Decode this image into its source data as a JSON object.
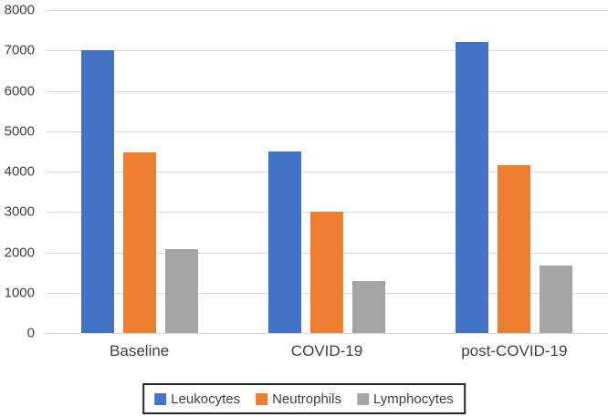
{
  "chart_data": {
    "type": "bar",
    "title": "",
    "categories": [
      "Baseline",
      "COVID-19",
      "post-COVID-19"
    ],
    "series": [
      {
        "name": "Leukocytes",
        "color": "#4472C4",
        "values": [
          7000,
          4500,
          7200
        ]
      },
      {
        "name": "Neutrophils",
        "color": "#ED7D31",
        "values": [
          4480,
          3000,
          4160
        ]
      },
      {
        "name": "Lymphocytes",
        "color": "#A5A5A5",
        "values": [
          2080,
          1280,
          1670
        ]
      }
    ],
    "xlabel": "",
    "ylabel": "",
    "ylim": [
      0,
      8000
    ],
    "ytick_step": 1000,
    "ytick_labels": [
      "0",
      "1000",
      "2000",
      "3000",
      "4000",
      "5000",
      "6000",
      "7000",
      "8000"
    ],
    "grid": true,
    "legend_position": "bottom-center",
    "colors": {
      "gridline": "#D9D9D9",
      "axis_text": "#404040",
      "legend_border": "#262626",
      "background": "#FFFFFF"
    }
  }
}
